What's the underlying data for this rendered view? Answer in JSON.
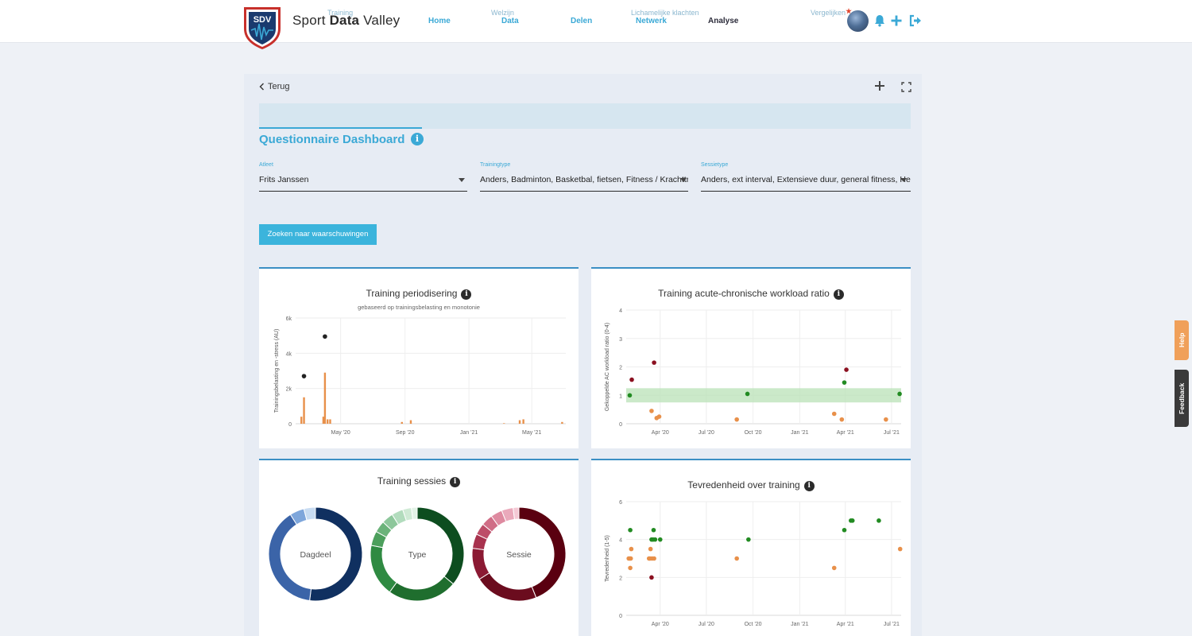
{
  "header": {
    "logo_text": "SDV",
    "brand_prefix": "Sport ",
    "brand_bold": "Data",
    "brand_suffix": " Valley",
    "nav": [
      {
        "label": "Home"
      },
      {
        "label": "Data"
      },
      {
        "label": "Delen"
      },
      {
        "label": "Netwerk"
      },
      {
        "label": "Analyse",
        "active": true
      }
    ],
    "icons": [
      "avatar",
      "bell-icon",
      "plus-icon",
      "logout-icon"
    ]
  },
  "panel": {
    "back_label": "Terug",
    "tabs": [
      "Training",
      "Welzijn",
      "Lichamelijke klachten",
      "Vergelijken"
    ],
    "title": "Questionnaire Dashboard",
    "info": "i",
    "filters": [
      {
        "label": "Atleet",
        "value": "Frits Janssen"
      },
      {
        "label": "Trainingtype",
        "value": "Anders, Badminton, Basketbal, fietsen, Fitness / Krachttraining"
      },
      {
        "label": "Sessietype",
        "value": "Anders, ext interval, Extensieve duur, general fitness, Herstel"
      }
    ],
    "search_button": "Zoeken naar waarschuwingen"
  },
  "colors": {
    "accent": "#3ba9d6",
    "orange": "#e8904a",
    "green": "#228b22",
    "darkred": "#8b1020",
    "black": "#222222"
  },
  "charts": {
    "periodisering": {
      "title": "Training periodisering",
      "subtitle": "gebaseerd op trainingsbelasting en monotonie",
      "ylabel": "Trainingsbelasting en -stress (AU)"
    },
    "acwr": {
      "title": "Training acute-chronische workload ratio",
      "ylabel": "Gekoppelde AC workload ratio (0-4)"
    },
    "sessies": {
      "title": "Training sessies",
      "donuts": [
        "Dagdeel",
        "Type",
        "Sessie"
      ]
    },
    "tevredenheid": {
      "title": "Tevredenheid over training",
      "ylabel": "Tevredenheid (1-5)"
    }
  },
  "chart_data": [
    {
      "type": "bar",
      "title": "Training periodisering",
      "subtitle": "gebaseerd op trainingsbelasting en monotonie",
      "ylabel": "Trainingsbelasting en -stress (AU)",
      "xlabel": "",
      "x_ticks": [
        "May '20",
        "Sep '20",
        "Jan '21",
        "May '21"
      ],
      "y_ticks": [
        "0",
        "2k",
        "4k",
        "6k"
      ],
      "ylim": [
        0,
        6000
      ],
      "xlim": [
        "2020-02-05",
        "2021-07-05"
      ],
      "series": [
        {
          "kind": "bar",
          "x": [
            "2020-02-16",
            "2020-02-21",
            "2020-03-29",
            "2020-04-01",
            "2020-04-06",
            "2020-04-11",
            "2020-08-26",
            "2020-09-12",
            "2021-03-09",
            "2021-04-08",
            "2021-04-15",
            "2021-06-28"
          ],
          "values": [
            400,
            1500,
            400,
            2900,
            250,
            250,
            100,
            200,
            30,
            200,
            250,
            100
          ]
        },
        {
          "kind": "point",
          "x": [
            "2020-02-21",
            "2020-04-01"
          ],
          "values": [
            2700,
            4950
          ]
        }
      ],
      "grid": true
    },
    {
      "type": "scatter",
      "title": "Training acute-chronische workload ratio",
      "ylabel": "Gekoppelde AC workload ratio (0-4)",
      "x_ticks": [
        "Apr '20",
        "Jul '20",
        "Oct '20",
        "Jan '21",
        "Apr '21",
        "Jul '21"
      ],
      "y_ticks": [
        "0",
        "1",
        "2",
        "3",
        "4"
      ],
      "ylim": [
        0,
        4
      ],
      "xlim": [
        "2020-01-25",
        "2021-07-20"
      ],
      "band": [
        0.75,
        1.25
      ],
      "series": [
        {
          "color": "green",
          "x": [
            "2020-02-01",
            "2020-09-20",
            "2021-03-30",
            "2021-07-17"
          ],
          "values": [
            1.0,
            1.05,
            1.45,
            1.05
          ]
        },
        {
          "color": "darkred",
          "x": [
            "2020-02-05",
            "2020-03-20",
            "2021-04-03"
          ],
          "values": [
            1.55,
            2.15,
            1.9
          ]
        },
        {
          "color": "orange",
          "x": [
            "2020-03-15",
            "2020-03-25",
            "2020-03-30",
            "2020-08-30",
            "2021-03-10",
            "2021-03-25",
            "2021-06-20"
          ],
          "values": [
            0.45,
            0.2,
            0.25,
            0.15,
            0.35,
            0.15,
            0.15
          ]
        }
      ],
      "grid": true
    },
    {
      "type": "pie",
      "title": "Training sessies",
      "donuts": [
        {
          "label": "Dagdeel",
          "slices": [
            52,
            39,
            5,
            4
          ],
          "colors": [
            "#103060",
            "#3b64a8",
            "#7ea6db",
            "#c8dcf2"
          ]
        },
        {
          "label": "Type",
          "slices": [
            36,
            24,
            18,
            5,
            4,
            4,
            4,
            3,
            2
          ],
          "colors": [
            "#0d4d1f",
            "#1f6e2e",
            "#2f8a42",
            "#4c9f5c",
            "#6bb37a",
            "#8dc79b",
            "#b2dcbd",
            "#cfead5",
            "#e3f3e7"
          ]
        },
        {
          "label": "Sessie",
          "slices": [
            44,
            22,
            11,
            5,
            4,
            4,
            4,
            4,
            2
          ],
          "colors": [
            "#5a0010",
            "#6b0c1e",
            "#8b1a33",
            "#a8324e",
            "#bd4d68",
            "#d06d86",
            "#de8aa0",
            "#eaa9bb",
            "#f5c9d5"
          ]
        }
      ]
    },
    {
      "type": "scatter",
      "title": "Tevredenheid over training",
      "ylabel": "Tevredenheid (1-5)",
      "x_ticks": [
        "Apr '20",
        "Jul '20",
        "Oct '20",
        "Jan '21",
        "Apr '21",
        "Jul '21"
      ],
      "y_ticks": [
        "0",
        "2",
        "4",
        "6"
      ],
      "ylim": [
        0,
        6
      ],
      "xlim": [
        "2020-01-25",
        "2021-07-20"
      ],
      "series": [
        {
          "color": "green",
          "x": [
            "2020-02-02",
            "2020-03-15",
            "2020-03-18",
            "2020-03-22",
            "2020-03-19",
            "2020-04-01",
            "2020-09-22",
            "2021-03-30",
            "2021-04-12",
            "2021-04-15",
            "2021-06-06"
          ],
          "values": [
            4.5,
            4,
            4,
            4,
            4.5,
            4,
            4,
            4.5,
            5,
            5,
            5
          ]
        },
        {
          "color": "orange",
          "x": [
            "2020-01-30",
            "2020-02-01",
            "2020-02-03",
            "2020-02-04",
            "2020-02-02",
            "2020-03-10",
            "2020-03-12",
            "2020-03-16",
            "2020-03-20",
            "2020-03-13",
            "2020-08-30",
            "2021-03-10",
            "2021-07-18"
          ],
          "values": [
            3,
            3,
            3,
            3.5,
            2.5,
            3,
            3,
            3,
            3,
            3.5,
            3,
            2.5,
            3.5
          ]
        },
        {
          "color": "darkred",
          "x": [
            "2020-03-15"
          ],
          "values": [
            2
          ]
        }
      ],
      "grid": true
    }
  ],
  "side_tabs": {
    "help": "Help",
    "feedback": "Feedback"
  }
}
